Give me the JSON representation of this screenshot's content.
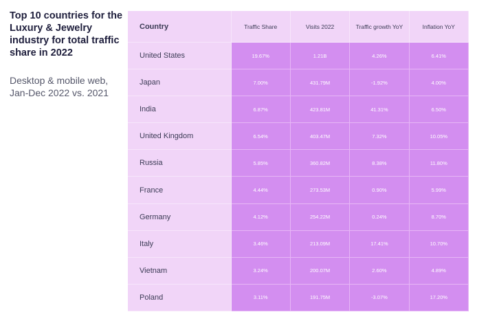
{
  "sidebar": {
    "title": "Top 10 countries for the Luxury & Jewelry industry for total traffic share in 2022",
    "subtitle": "Desktop & mobile web, Jan-Dec 2022 vs. 2021"
  },
  "colors": {
    "header_bg": "#f1d5f8",
    "cell_bg": "#d38ef0",
    "cell_text": "#ffffff",
    "title_text": "#1e1e3c"
  },
  "chart_data": {
    "type": "table",
    "title": "Top 10 countries for the Luxury & Jewelry industry for total traffic share in 2022",
    "subtitle": "Desktop & mobile web, Jan-Dec 2022 vs. 2021",
    "columns": [
      "Country",
      "Traffic Share",
      "Visits 2022",
      "Traffic growth YoY",
      "Inflation YoY"
    ],
    "rows": [
      [
        "United States",
        "19.67%",
        "1.21B",
        "4.26%",
        "6.41%"
      ],
      [
        "Japan",
        "7.00%",
        "431.79M",
        "-1.92%",
        "4.00%"
      ],
      [
        "India",
        "6.87%",
        "423.81M",
        "41.31%",
        "6.50%"
      ],
      [
        "United Kingdom",
        "6.54%",
        "403.47M",
        "7.32%",
        "10.05%"
      ],
      [
        "Russia",
        "5.85%",
        "360.82M",
        "8.38%",
        "11.80%"
      ],
      [
        "France",
        "4.44%",
        "273.53M",
        "0.90%",
        "5.99%"
      ],
      [
        "Germany",
        "4.12%",
        "254.22M",
        "0.24%",
        "8.70%"
      ],
      [
        "Italy",
        "3.46%",
        "213.09M",
        "17.41%",
        "10.70%"
      ],
      [
        "Vietnam",
        "3.24%",
        "200.07M",
        "2.60%",
        "4.89%"
      ],
      [
        "Poland",
        "3.11%",
        "191.75M",
        "-3.07%",
        "17.20%"
      ]
    ]
  }
}
